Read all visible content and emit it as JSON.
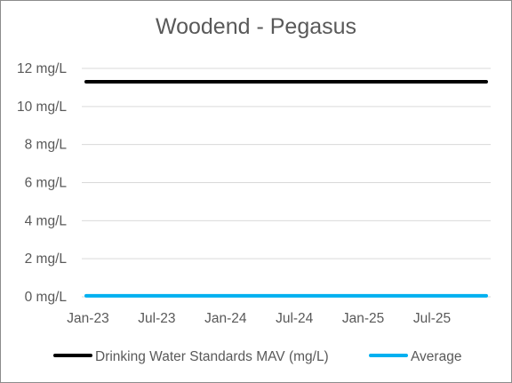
{
  "chart_data": {
    "type": "line",
    "title": "Woodend - Pegasus",
    "xlabel": "",
    "ylabel": "",
    "ylim": [
      0,
      12
    ],
    "y_ticks": [
      0,
      2,
      4,
      6,
      8,
      10,
      12
    ],
    "y_tick_labels": [
      "0 mg/L",
      "2 mg/L",
      "4 mg/L",
      "6 mg/L",
      "8 mg/L",
      "10 mg/L",
      "12 mg/L"
    ],
    "x_tick_labels": [
      "Jan-23",
      "Jul-23",
      "Jan-24",
      "Jul-24",
      "Jan-25",
      "Jul-25"
    ],
    "x_range": [
      "2023-01",
      "2025-11"
    ],
    "grid": true,
    "legend_position": "bottom",
    "series": [
      {
        "name": "Drinking Water Standards MAV (mg/L)",
        "color": "#000000",
        "points": [
          {
            "x": "2023-01",
            "y": 11.3
          },
          {
            "x": "2025-11",
            "y": 11.3
          }
        ]
      },
      {
        "name": "Average",
        "color": "#00b0f0",
        "points": [
          {
            "x": "2023-01",
            "y": 0.05
          },
          {
            "x": "2025-11",
            "y": 0.05
          }
        ]
      }
    ]
  }
}
